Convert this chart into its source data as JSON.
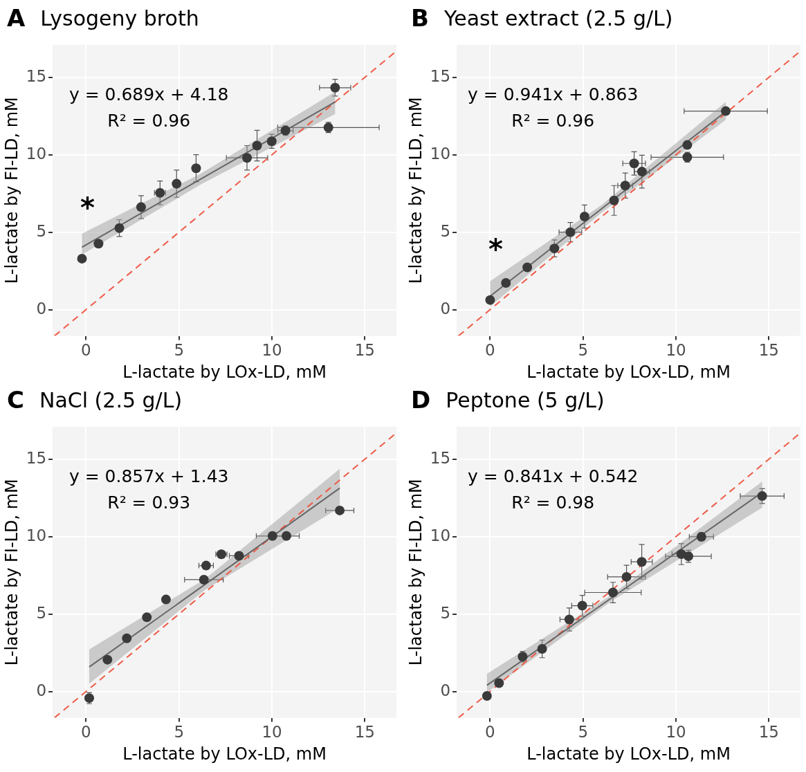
{
  "chart_data": [
    {
      "type": "scatter",
      "title": "A",
      "subtitle": "Lysogeny broth",
      "xlabel": "L-lactate by LOx-LD, mM",
      "ylabel": "L-lactate by FI-LD, mM",
      "xlim": [
        -1.8,
        16.7
      ],
      "ylim": [
        -1.7,
        17.1
      ],
      "xticks": [
        0,
        5,
        10,
        15
      ],
      "yticks": [
        0,
        5,
        10,
        15
      ],
      "grid": true,
      "legend": false,
      "annotations": [
        "y = 0.689x + 4.18",
        "R² = 0.96",
        "*"
      ],
      "series": [
        {
          "type": "scatter",
          "marker": "circle",
          "color": "#3a3a3a",
          "x": [
            -0.22,
            0.67,
            1.79,
            2.96,
            3.98,
            4.87,
            5.92,
            8.66,
            9.2,
            9.99,
            10.73,
            13.04,
            13.4
          ],
          "values": [
            3.29,
            4.26,
            5.26,
            6.62,
            7.54,
            8.13,
            9.13,
            9.8,
            10.59,
            10.87,
            11.56,
            11.76,
            14.33
          ],
          "errors": [
            null,
            null,
            0.54,
            0.74,
            0.77,
            0.88,
            0.87,
            0.79,
            0.99,
            0.45,
            0.31,
            0.33,
            0.54
          ],
          "xerrors": [
            null,
            null,
            null,
            null,
            0.3,
            null,
            null,
            1.11,
            null,
            0.2,
            0.41,
            2.73,
            0.84
          ]
        },
        {
          "type": "line",
          "marker": "none",
          "line_style": "solid",
          "color": "#666666",
          "x": [
            -0.22,
            6.2,
            13.4
          ],
          "values": [
            4.03,
            8.45,
            13.41
          ],
          "lower": [
            3.55,
            8.1,
            12.63
          ],
          "upper": [
            4.91,
            8.8,
            14.06
          ]
        },
        {
          "type": "line",
          "marker": "none",
          "line_style": "dashed",
          "color": "#ee5a45",
          "x": [
            -1.7,
            16.7
          ],
          "values": [
            -1.7,
            16.7
          ]
        }
      ]
    },
    {
      "type": "scatter",
      "title": "B",
      "subtitle": "Yeast extract (2.5 g/L)",
      "xlabel": "L-lactate by LOx-LD, mM",
      "ylabel": "L-lactate by FI-LD, mM",
      "xlim": [
        -1.8,
        16.7
      ],
      "ylim": [
        -1.7,
        17.1
      ],
      "xticks": [
        0,
        5,
        10,
        15
      ],
      "yticks": [
        0,
        5,
        10,
        15
      ],
      "grid": true,
      "legend": false,
      "annotations": [
        "y = 0.941x + 0.863",
        "R² = 0.96",
        "*"
      ],
      "series": [
        {
          "type": "scatter",
          "marker": "circle",
          "color": "#3a3a3a",
          "x": [
            0,
            0.85,
            2.0,
            3.46,
            4.32,
            5.08,
            6.67,
            7.27,
            7.75,
            8.17,
            10.61,
            10.61,
            12.68
          ],
          "values": [
            0.62,
            1.72,
            2.73,
            3.95,
            5.0,
            6.01,
            7.05,
            8.01,
            9.44,
            8.91,
            9.84,
            10.63,
            12.82
          ],
          "errors": [
            null,
            null,
            null,
            0.55,
            0.63,
            0.74,
            0.96,
            0.81,
            0.75,
            1.06,
            0.32,
            null,
            null
          ],
          "xerrors": [
            null,
            null,
            null,
            null,
            0.61,
            null,
            null,
            0.4,
            0.61,
            0.4,
            1.95,
            null,
            2.24
          ]
        },
        {
          "type": "line",
          "marker": "none",
          "line_style": "solid",
          "color": "#666666",
          "x": [
            0,
            6,
            12.68
          ],
          "values": [
            0.86,
            6.51,
            12.79
          ],
          "lower": [
            0.19,
            6.26,
            12.25
          ],
          "upper": [
            1.83,
            6.76,
            13.42
          ]
        },
        {
          "type": "line",
          "marker": "none",
          "line_style": "dashed",
          "color": "#ee5a45",
          "x": [
            -1.7,
            16.7
          ],
          "values": [
            -1.7,
            16.7
          ]
        }
      ]
    },
    {
      "type": "scatter",
      "title": "C",
      "subtitle": "NaCl (2.5 g/L)",
      "xlabel": "L-lactate by LOx-LD, mM",
      "ylabel": "L-lactate by FI-LD, mM",
      "xlim": [
        -1.8,
        16.7
      ],
      "ylim": [
        -1.7,
        17.1
      ],
      "xticks": [
        0,
        5,
        10,
        15
      ],
      "yticks": [
        0,
        5,
        10,
        15
      ],
      "grid": true,
      "legend": false,
      "annotations": [
        "y = 0.857x + 1.43",
        "R² = 0.93"
      ],
      "series": [
        {
          "type": "scatter",
          "marker": "circle",
          "color": "#3a3a3a",
          "x": [
            0.17,
            1.15,
            2.19,
            3.27,
            4.3,
            6.34,
            6.46,
            7.28,
            8.23,
            10.03,
            10.78,
            13.65
          ],
          "values": [
            -0.43,
            2.05,
            3.43,
            4.79,
            5.94,
            7.22,
            8.13,
            8.86,
            8.76,
            10.04,
            10.04,
            11.69
          ],
          "errors": [
            0.36,
            null,
            null,
            null,
            null,
            null,
            null,
            null,
            null,
            null,
            null,
            null
          ],
          "xerrors": [
            null,
            null,
            null,
            null,
            null,
            1.04,
            0.39,
            0.3,
            0.52,
            0.87,
            0.69,
            0.76
          ]
        },
        {
          "type": "line",
          "marker": "none",
          "line_style": "solid",
          "color": "#666666",
          "x": [
            0.17,
            6.4,
            13.65
          ],
          "values": [
            1.58,
            6.91,
            13.13
          ],
          "lower": [
            0.5,
            6.56,
            11.87
          ],
          "upper": [
            2.72,
            7.26,
            14.38
          ]
        },
        {
          "type": "line",
          "marker": "none",
          "line_style": "dashed",
          "color": "#ee5a45",
          "x": [
            -1.7,
            16.7
          ],
          "values": [
            -1.7,
            16.7
          ]
        }
      ]
    },
    {
      "type": "scatter",
      "title": "D",
      "subtitle": "Peptone (5 g/L)",
      "xlabel": "L-lactate by LOx-LD, mM",
      "ylabel": "L-lactate by FI-LD, mM",
      "xlim": [
        -1.8,
        16.7
      ],
      "ylim": [
        -1.7,
        17.1
      ],
      "xticks": [
        0,
        5,
        10,
        15
      ],
      "yticks": [
        0,
        5,
        10,
        15
      ],
      "grid": true,
      "legend": false,
      "annotations": [
        "y = 0.841x + 0.542",
        "R² = 0.98"
      ],
      "series": [
        {
          "type": "scatter",
          "marker": "circle",
          "color": "#3a3a3a",
          "x": [
            -0.17,
            0.48,
            1.75,
            2.8,
            4.26,
            4.96,
            6.61,
            7.34,
            8.16,
            10.29,
            10.67,
            11.37,
            14.64
          ],
          "values": [
            -0.29,
            0.54,
            2.25,
            2.75,
            4.65,
            5.54,
            6.39,
            7.4,
            8.37,
            8.87,
            8.73,
            9.99,
            12.62
          ],
          "errors": [
            null,
            null,
            0.34,
            0.57,
            0.74,
            0.67,
            0.66,
            0.75,
            1.12,
            0.68,
            0.39,
            0.26,
            0.48
          ],
          "xerrors": [
            null,
            null,
            null,
            null,
            0.5,
            0.57,
            1.52,
            1.02,
            0.57,
            0.5,
            1.23,
            0.65,
            1.18
          ]
        },
        {
          "type": "line",
          "marker": "none",
          "line_style": "solid",
          "color": "#666666",
          "x": [
            -0.17,
            6.5,
            14.64
          ],
          "values": [
            0.4,
            6.01,
            12.85
          ],
          "lower": [
            -0.07,
            5.81,
            11.87
          ],
          "upper": [
            1.14,
            6.21,
            13.56
          ]
        },
        {
          "type": "line",
          "marker": "none",
          "line_style": "dashed",
          "color": "#ee5a45",
          "x": [
            -1.7,
            16.7
          ],
          "values": [
            -1.7,
            16.7
          ]
        }
      ]
    }
  ]
}
